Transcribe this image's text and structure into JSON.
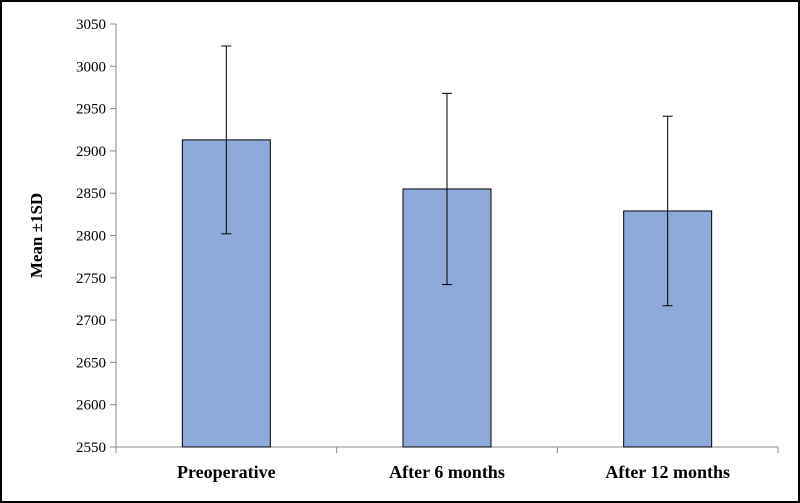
{
  "chart_data": {
    "type": "bar",
    "categories": [
      "Preoperative",
      "After 6 months",
      "After 12 months"
    ],
    "values": [
      2913,
      2855,
      2829
    ],
    "error_low": [
      2802,
      2742,
      2717
    ],
    "error_high": [
      3024,
      2968,
      2941
    ],
    "ylabel": "Mean ±1SD",
    "ylim": [
      2550,
      3050
    ],
    "yticks": [
      2550,
      2600,
      2650,
      2700,
      2750,
      2800,
      2850,
      2900,
      2950,
      3000,
      3050
    ],
    "grid": false,
    "legend": "none",
    "bar_color": "#8eaadb",
    "bar_edge_color": "#000000"
  }
}
